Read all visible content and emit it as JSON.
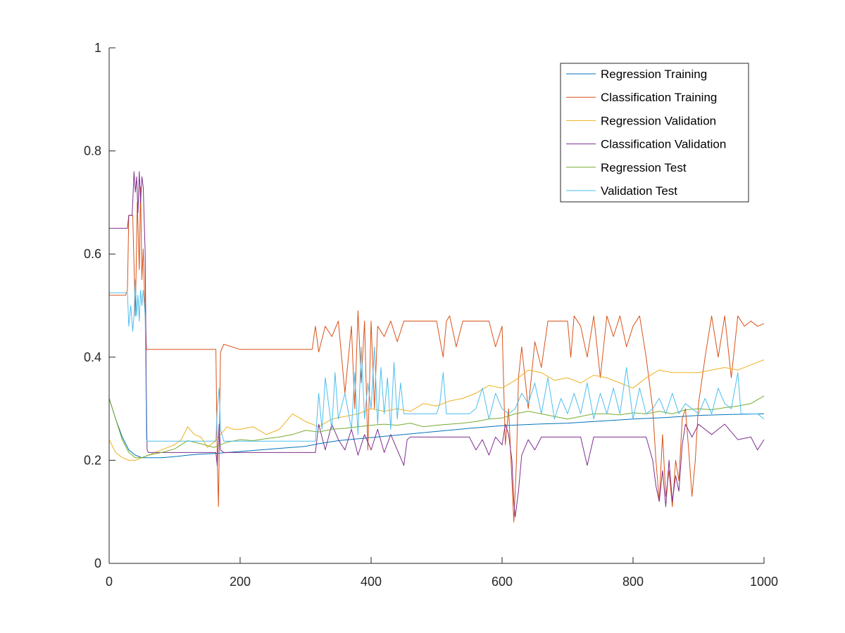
{
  "chart_data": {
    "type": "line",
    "title": "",
    "xlabel": "",
    "ylabel": "",
    "xlim": [
      0,
      1000
    ],
    "ylim": [
      0,
      1
    ],
    "xticks": [
      0,
      200,
      400,
      600,
      800,
      1000
    ],
    "yticks": [
      0,
      0.2,
      0.4,
      0.6,
      0.8,
      1
    ],
    "xtick_labels": [
      "0",
      "200",
      "400",
      "600",
      "800",
      "1000"
    ],
    "ytick_labels": [
      "0",
      "0.2",
      "0.4",
      "0.6",
      "0.8",
      "1"
    ],
    "grid": false,
    "legend_position": "top-right",
    "series": [
      {
        "name": "Regression Training",
        "color": "#0072BD",
        "x": [
          0,
          10,
          20,
          30,
          40,
          50,
          60,
          80,
          100,
          120,
          140,
          160,
          180,
          200,
          250,
          300,
          320,
          350,
          400,
          450,
          500,
          550,
          600,
          650,
          700,
          750,
          800,
          850,
          900,
          950,
          1000
        ],
        "y": [
          0.32,
          0.28,
          0.245,
          0.22,
          0.21,
          0.205,
          0.205,
          0.205,
          0.207,
          0.21,
          0.212,
          0.213,
          0.215,
          0.217,
          0.222,
          0.227,
          0.232,
          0.238,
          0.244,
          0.25,
          0.256,
          0.262,
          0.267,
          0.27,
          0.272,
          0.276,
          0.28,
          0.283,
          0.287,
          0.289,
          0.29
        ]
      },
      {
        "name": "Classification Training",
        "color": "#D95319",
        "x": [
          0,
          25,
          28,
          30,
          33,
          36,
          40,
          43,
          46,
          48,
          50,
          52,
          55,
          57,
          58,
          60,
          100,
          150,
          163,
          165,
          167,
          170,
          175,
          200,
          250,
          300,
          310,
          315,
          320,
          330,
          340,
          350,
          360,
          370,
          375,
          380,
          385,
          390,
          395,
          400,
          405,
          410,
          420,
          430,
          440,
          450,
          460,
          470,
          480,
          490,
          500,
          510,
          515,
          520,
          530,
          540,
          550,
          560,
          570,
          580,
          590,
          600,
          605,
          610,
          615,
          618,
          622,
          625,
          630,
          640,
          650,
          660,
          670,
          680,
          690,
          700,
          705,
          710,
          720,
          730,
          740,
          750,
          760,
          770,
          780,
          790,
          800,
          810,
          820,
          830,
          835,
          840,
          845,
          850,
          855,
          860,
          865,
          870,
          875,
          880,
          885,
          890,
          895,
          900,
          910,
          920,
          930,
          940,
          950,
          960,
          970,
          980,
          990,
          1000
        ],
        "y": [
          0.52,
          0.52,
          0.53,
          0.675,
          0.675,
          0.675,
          0.48,
          0.7,
          0.57,
          0.73,
          0.55,
          0.61,
          0.48,
          0.415,
          0.415,
          0.415,
          0.415,
          0.415,
          0.415,
          0.2,
          0.11,
          0.41,
          0.425,
          0.415,
          0.415,
          0.415,
          0.415,
          0.46,
          0.41,
          0.46,
          0.44,
          0.47,
          0.33,
          0.46,
          0.3,
          0.49,
          0.35,
          0.47,
          0.22,
          0.47,
          0.3,
          0.46,
          0.44,
          0.47,
          0.43,
          0.47,
          0.47,
          0.47,
          0.47,
          0.47,
          0.47,
          0.4,
          0.47,
          0.48,
          0.42,
          0.47,
          0.47,
          0.47,
          0.47,
          0.47,
          0.42,
          0.46,
          0.23,
          0.3,
          0.16,
          0.08,
          0.2,
          0.36,
          0.42,
          0.3,
          0.43,
          0.38,
          0.47,
          0.47,
          0.47,
          0.47,
          0.4,
          0.48,
          0.46,
          0.4,
          0.48,
          0.36,
          0.48,
          0.44,
          0.48,
          0.42,
          0.46,
          0.48,
          0.4,
          0.3,
          0.2,
          0.12,
          0.25,
          0.13,
          0.18,
          0.11,
          0.2,
          0.16,
          0.28,
          0.3,
          0.22,
          0.13,
          0.2,
          0.31,
          0.4,
          0.48,
          0.4,
          0.48,
          0.36,
          0.48,
          0.46,
          0.47,
          0.46,
          0.465
        ]
      },
      {
        "name": "Regression Validation",
        "color": "#EDB120",
        "x": [
          0,
          10,
          20,
          30,
          40,
          50,
          60,
          80,
          100,
          110,
          120,
          130,
          140,
          150,
          160,
          170,
          180,
          190,
          200,
          220,
          240,
          260,
          280,
          300,
          320,
          340,
          360,
          380,
          400,
          420,
          440,
          460,
          480,
          500,
          520,
          540,
          560,
          580,
          600,
          620,
          640,
          660,
          680,
          700,
          720,
          740,
          760,
          780,
          800,
          820,
          840,
          860,
          880,
          900,
          920,
          940,
          960,
          980,
          1000
        ],
        "y": [
          0.24,
          0.215,
          0.205,
          0.2,
          0.2,
          0.205,
          0.21,
          0.22,
          0.23,
          0.24,
          0.265,
          0.25,
          0.245,
          0.225,
          0.235,
          0.25,
          0.265,
          0.26,
          0.26,
          0.265,
          0.25,
          0.26,
          0.29,
          0.275,
          0.265,
          0.28,
          0.285,
          0.29,
          0.3,
          0.295,
          0.3,
          0.295,
          0.31,
          0.305,
          0.315,
          0.32,
          0.33,
          0.345,
          0.34,
          0.355,
          0.375,
          0.37,
          0.355,
          0.36,
          0.35,
          0.365,
          0.36,
          0.35,
          0.34,
          0.36,
          0.375,
          0.37,
          0.37,
          0.37,
          0.375,
          0.38,
          0.375,
          0.385,
          0.395
        ]
      },
      {
        "name": "Classification Validation",
        "color": "#7E2F8E",
        "x": [
          0,
          20,
          25,
          28,
          30,
          33,
          35,
          36,
          38,
          40,
          42,
          44,
          46,
          48,
          50,
          52,
          55,
          57,
          58,
          60,
          100,
          150,
          163,
          165,
          168,
          170,
          175,
          200,
          250,
          300,
          315,
          320,
          330,
          340,
          350,
          360,
          370,
          380,
          390,
          400,
          410,
          420,
          430,
          440,
          450,
          455,
          460,
          500,
          510,
          520,
          550,
          560,
          570,
          580,
          590,
          600,
          605,
          610,
          615,
          618,
          620,
          625,
          630,
          640,
          650,
          660,
          680,
          700,
          720,
          730,
          740,
          760,
          780,
          800,
          820,
          830,
          835,
          840,
          845,
          850,
          855,
          860,
          865,
          870,
          875,
          880,
          890,
          900,
          920,
          940,
          960,
          980,
          990,
          1000
        ],
        "y": [
          0.65,
          0.65,
          0.65,
          0.65,
          0.675,
          0.675,
          0.675,
          0.7,
          0.76,
          0.72,
          0.75,
          0.68,
          0.76,
          0.7,
          0.75,
          0.73,
          0.6,
          0.31,
          0.22,
          0.215,
          0.215,
          0.215,
          0.215,
          0.19,
          0.27,
          0.22,
          0.215,
          0.215,
          0.215,
          0.215,
          0.215,
          0.27,
          0.22,
          0.27,
          0.24,
          0.22,
          0.26,
          0.21,
          0.25,
          0.22,
          0.26,
          0.215,
          0.25,
          0.22,
          0.19,
          0.24,
          0.245,
          0.245,
          0.245,
          0.245,
          0.245,
          0.22,
          0.24,
          0.21,
          0.245,
          0.23,
          0.27,
          0.25,
          0.2,
          0.12,
          0.09,
          0.14,
          0.21,
          0.24,
          0.22,
          0.245,
          0.245,
          0.245,
          0.245,
          0.19,
          0.245,
          0.245,
          0.245,
          0.245,
          0.245,
          0.2,
          0.15,
          0.12,
          0.18,
          0.11,
          0.2,
          0.12,
          0.17,
          0.14,
          0.23,
          0.27,
          0.245,
          0.27,
          0.25,
          0.27,
          0.24,
          0.245,
          0.22,
          0.24
        ]
      },
      {
        "name": "Regression Test",
        "color": "#77AC30",
        "x": [
          0,
          10,
          20,
          30,
          40,
          50,
          60,
          80,
          100,
          120,
          140,
          160,
          180,
          200,
          220,
          240,
          260,
          280,
          300,
          320,
          340,
          360,
          380,
          400,
          420,
          440,
          460,
          480,
          500,
          520,
          540,
          560,
          580,
          600,
          620,
          640,
          660,
          680,
          700,
          720,
          740,
          760,
          780,
          800,
          820,
          840,
          860,
          880,
          900,
          920,
          940,
          960,
          980,
          1000
        ],
        "y": [
          0.32,
          0.28,
          0.24,
          0.215,
          0.205,
          0.205,
          0.21,
          0.215,
          0.222,
          0.238,
          0.232,
          0.225,
          0.235,
          0.24,
          0.238,
          0.242,
          0.245,
          0.25,
          0.258,
          0.255,
          0.26,
          0.262,
          0.265,
          0.268,
          0.27,
          0.268,
          0.272,
          0.265,
          0.268,
          0.27,
          0.272,
          0.275,
          0.28,
          0.282,
          0.29,
          0.295,
          0.29,
          0.285,
          0.28,
          0.285,
          0.29,
          0.29,
          0.288,
          0.292,
          0.29,
          0.295,
          0.29,
          0.298,
          0.3,
          0.298,
          0.302,
          0.305,
          0.31,
          0.325
        ]
      },
      {
        "name": "Validation Test",
        "color": "#4DBEEE",
        "x": [
          0,
          25,
          28,
          30,
          33,
          36,
          38,
          40,
          42,
          44,
          46,
          48,
          50,
          52,
          55,
          57,
          58,
          60,
          100,
          150,
          163,
          165,
          168,
          170,
          175,
          200,
          250,
          300,
          315,
          320,
          325,
          330,
          340,
          345,
          350,
          360,
          370,
          375,
          380,
          385,
          390,
          395,
          400,
          405,
          410,
          415,
          420,
          425,
          430,
          435,
          440,
          445,
          450,
          455,
          460,
          500,
          505,
          510,
          515,
          520,
          550,
          560,
          570,
          580,
          590,
          600,
          610,
          620,
          630,
          640,
          650,
          660,
          670,
          680,
          690,
          700,
          710,
          720,
          730,
          740,
          750,
          760,
          770,
          780,
          790,
          800,
          810,
          820,
          830,
          840,
          850,
          860,
          870,
          880,
          890,
          900,
          910,
          920,
          930,
          940,
          950,
          960,
          965,
          970,
          980,
          990,
          1000
        ],
        "y": [
          0.525,
          0.525,
          0.525,
          0.46,
          0.5,
          0.45,
          0.48,
          0.55,
          0.48,
          0.52,
          0.47,
          0.53,
          0.5,
          0.53,
          0.48,
          0.24,
          0.237,
          0.237,
          0.237,
          0.237,
          0.237,
          0.3,
          0.34,
          0.26,
          0.237,
          0.237,
          0.237,
          0.237,
          0.237,
          0.33,
          0.26,
          0.36,
          0.26,
          0.37,
          0.28,
          0.33,
          0.26,
          0.37,
          0.25,
          0.42,
          0.28,
          0.35,
          0.3,
          0.42,
          0.27,
          0.38,
          0.29,
          0.36,
          0.26,
          0.39,
          0.28,
          0.35,
          0.29,
          0.29,
          0.29,
          0.29,
          0.31,
          0.37,
          0.29,
          0.29,
          0.29,
          0.3,
          0.34,
          0.28,
          0.33,
          0.3,
          0.29,
          0.3,
          0.33,
          0.31,
          0.35,
          0.29,
          0.36,
          0.28,
          0.32,
          0.29,
          0.33,
          0.29,
          0.35,
          0.28,
          0.33,
          0.29,
          0.34,
          0.29,
          0.38,
          0.28,
          0.34,
          0.29,
          0.3,
          0.32,
          0.29,
          0.33,
          0.29,
          0.31,
          0.3,
          0.29,
          0.32,
          0.29,
          0.34,
          0.31,
          0.3,
          0.37,
          0.29,
          0.29,
          0.29,
          0.29,
          0.28
        ]
      }
    ]
  }
}
